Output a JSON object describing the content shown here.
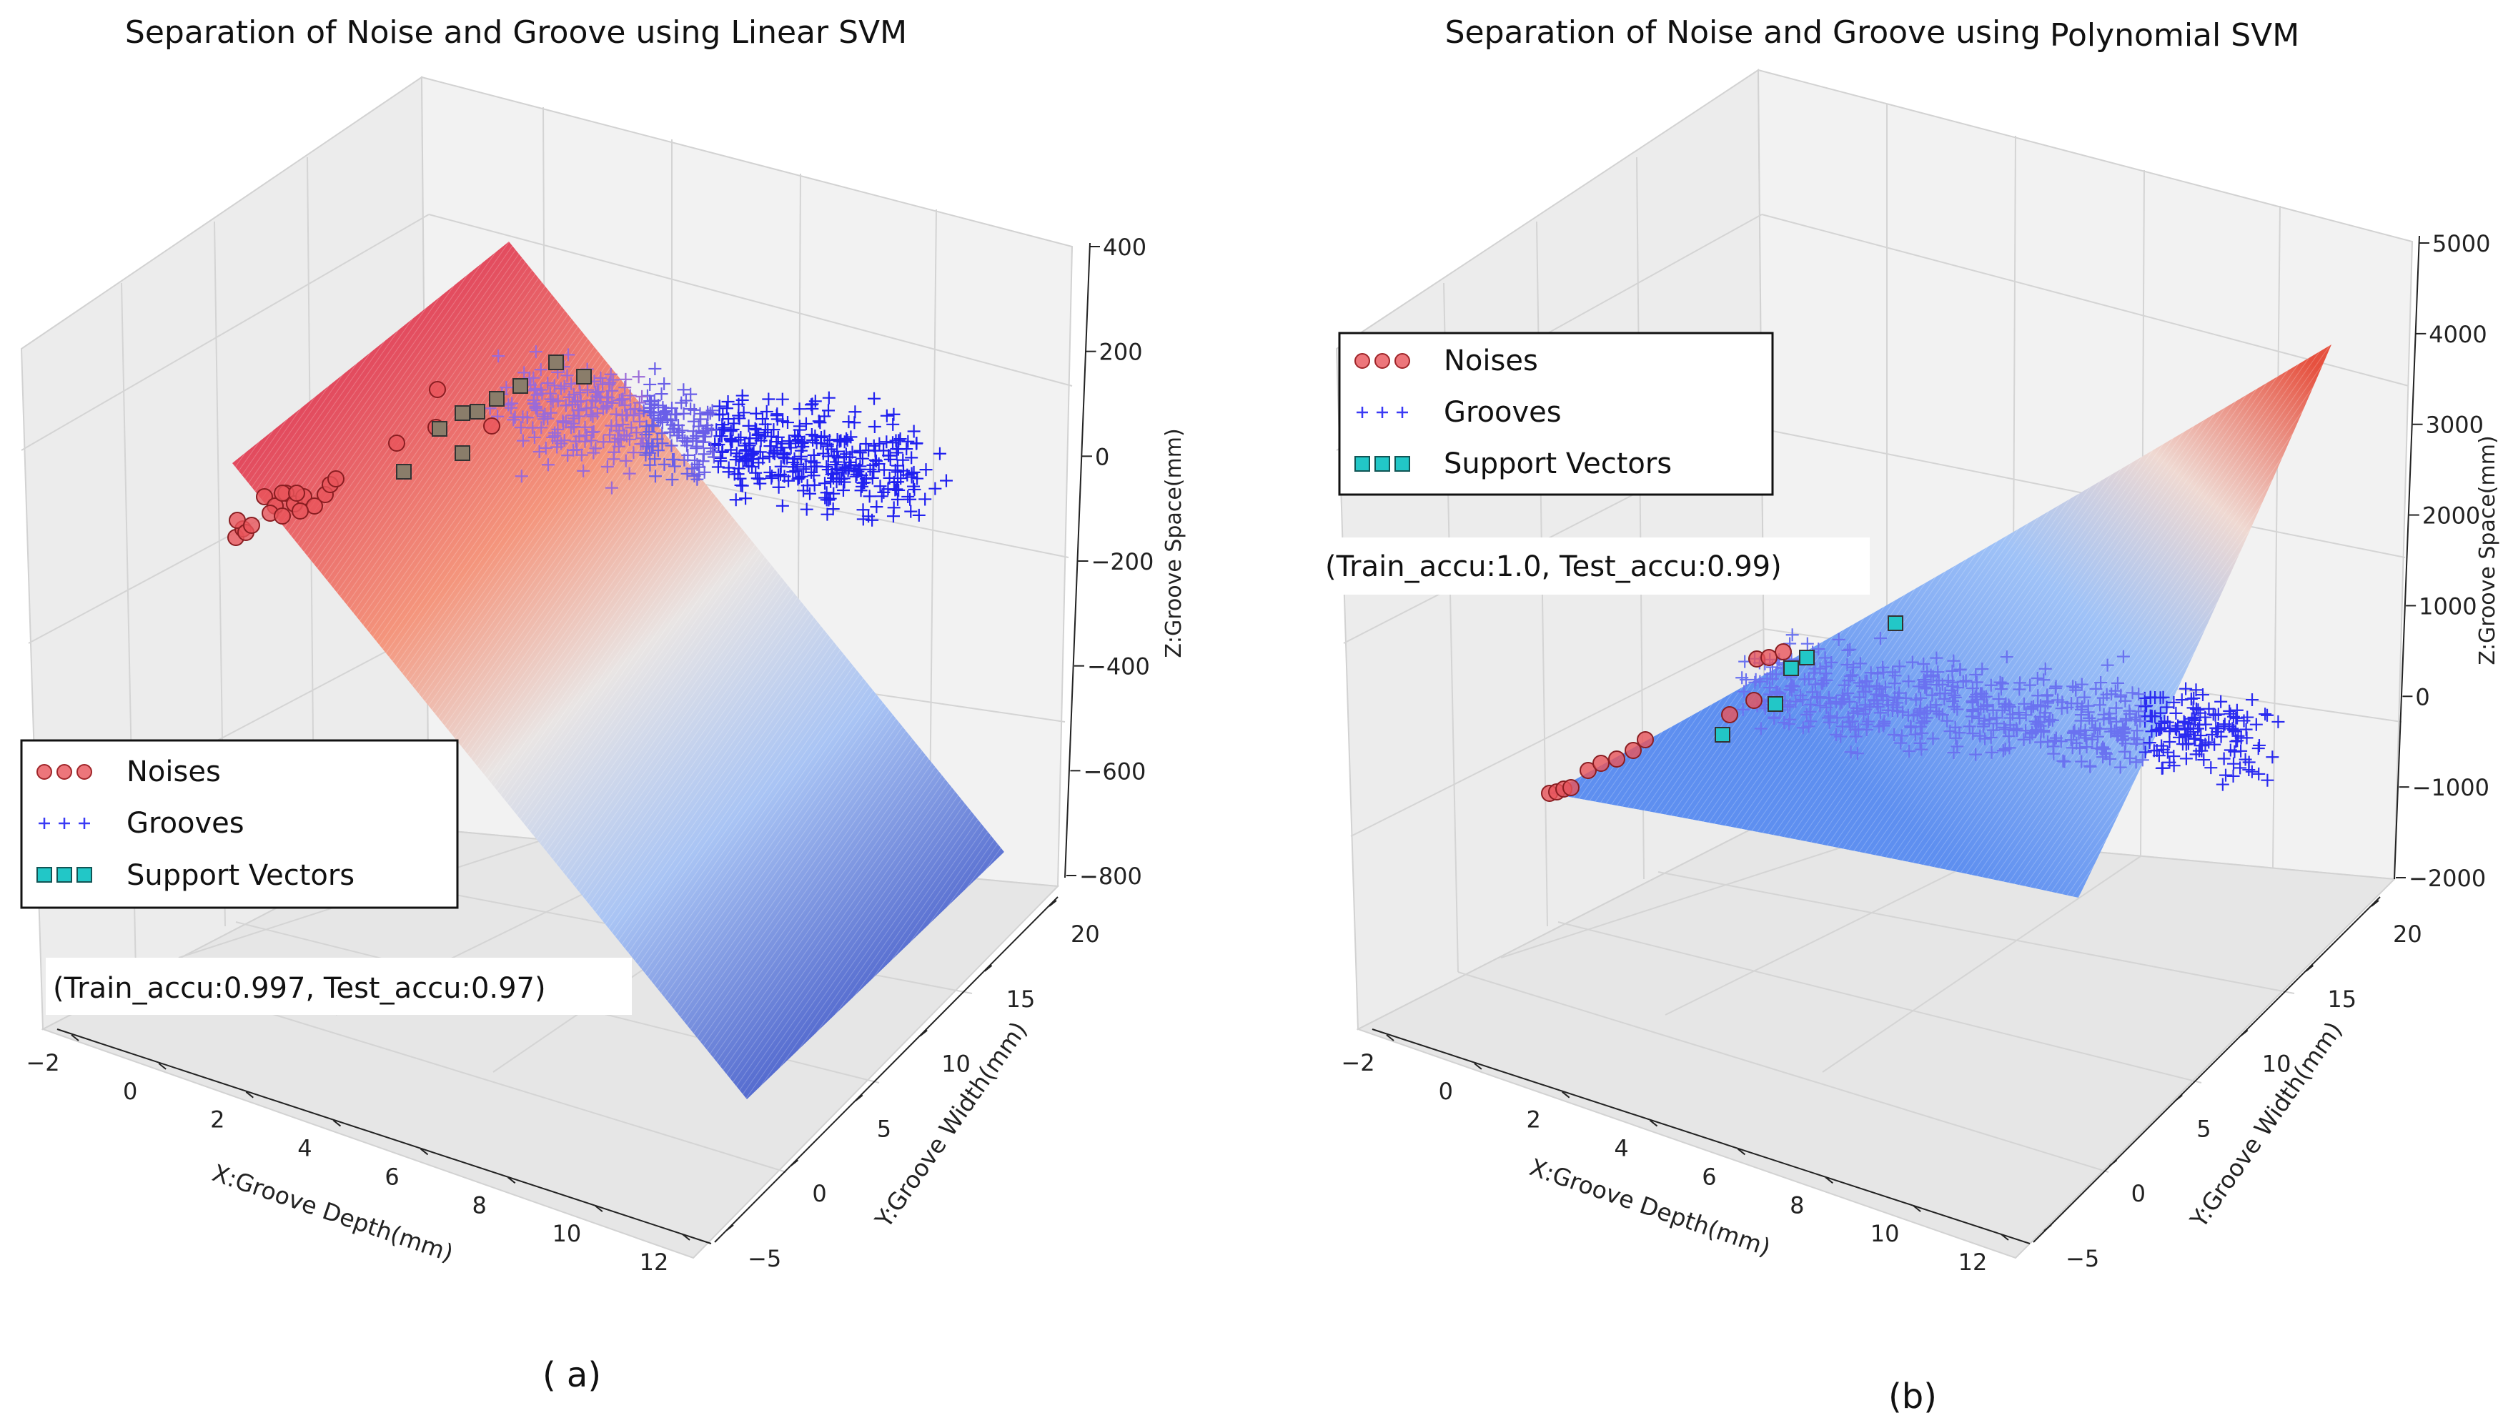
{
  "chart_data": [
    {
      "type": "scatter",
      "subtype": "3d-scatter-with-decision-surface",
      "title": "Separation of Noise and Groove using Linear SVM",
      "xlabel": "X:Groove Depth(mm)",
      "ylabel": "Y:Groove Width(mm)",
      "zlabel": "Z:Groove Space(mm)",
      "xlim": [
        -2,
        12
      ],
      "ylim": [
        -5,
        20
      ],
      "zlim": [
        -800,
        400
      ],
      "x_ticks": [
        "−2",
        "0",
        "2",
        "4",
        "6",
        "8",
        "10",
        "12"
      ],
      "y_ticks": [
        "−5",
        "0",
        "5",
        "10",
        "15",
        "20"
      ],
      "z_ticks": [
        "−800",
        "−600",
        "−400",
        "−200",
        "0",
        "200",
        "400"
      ],
      "legend": {
        "position": "center-left",
        "entries": [
          {
            "label": "Noises",
            "marker": "circle",
            "color": "#e8545a"
          },
          {
            "label": "Grooves",
            "marker": "plus",
            "color": "#3a3af5"
          },
          {
            "label": "Support Vectors",
            "marker": "square",
            "color": "#22c7c7"
          }
        ]
      },
      "annotation": "(Train_accu:0.997, Test_accu:0.97)",
      "caption": "( a)",
      "series": [
        {
          "name": "Noises",
          "x": [
            -1.8,
            -1.6,
            -1.4,
            -0.8,
            -0.5,
            0.0,
            0.5,
            1.8,
            3.0
          ],
          "y": [
            1.5,
            2.0,
            2.5,
            4.0,
            5.0,
            6.0,
            7.0,
            9.0,
            11.0
          ],
          "z": [
            -150,
            -140,
            -120,
            -60,
            -40,
            -20,
            0,
            30,
            60
          ]
        },
        {
          "name": "Grooves",
          "x_range": [
            4,
            12
          ],
          "y_range": [
            8,
            20
          ],
          "z_range": [
            -200,
            200
          ],
          "count": "approx. 600"
        },
        {
          "name": "Support Vectors",
          "x": [
            1.5,
            2.0,
            2.5,
            3.0,
            3.5,
            4.0
          ],
          "y": [
            8.0,
            9.0,
            10.0,
            11.0,
            12.0,
            13.0
          ],
          "z": [
            40,
            70,
            90,
            110,
            130,
            150
          ]
        }
      ]
    },
    {
      "type": "scatter",
      "subtype": "3d-scatter-with-decision-surface",
      "title_left": "Separation of Noise and Groove using",
      "title_right": "Polynomial SVM",
      "xlabel": "X:Groove Depth(mm)",
      "ylabel": "Y:Groove Width(mm)",
      "zlabel": "Z:Groove Space(mm)",
      "xlim": [
        -2,
        12
      ],
      "ylim": [
        -5,
        20
      ],
      "zlim": [
        -2000,
        5000
      ],
      "x_ticks": [
        "−2",
        "0",
        "2",
        "4",
        "6",
        "8",
        "10",
        "12"
      ],
      "y_ticks": [
        "−5",
        "0",
        "5",
        "10",
        "15",
        "20"
      ],
      "z_ticks": [
        "−2000",
        "−1000",
        "0",
        "1000",
        "2000",
        "3000",
        "4000",
        "5000"
      ],
      "legend": {
        "position": "top-left",
        "entries": [
          {
            "label": "Noises",
            "marker": "circle",
            "color": "#e8545a"
          },
          {
            "label": "Grooves",
            "marker": "plus",
            "color": "#3a3af5"
          },
          {
            "label": "Support Vectors",
            "marker": "square",
            "color": "#22c7c7"
          }
        ]
      },
      "annotation": "(Train_accu:1.0, Test_accu:0.99)",
      "caption": "(b)",
      "series": [
        {
          "name": "Noises",
          "x": [
            -1.8,
            -1.5,
            -1.0,
            -0.5,
            0.0,
            0.5,
            1.0,
            1.5,
            3.0
          ],
          "y": [
            1.0,
            1.5,
            2.5,
            3.5,
            4.5,
            5.5,
            6.5,
            7.5,
            10.0
          ],
          "z": [
            -1000,
            -980,
            -950,
            -900,
            -850,
            -800,
            -700,
            -600,
            -300
          ]
        },
        {
          "name": "Grooves",
          "x_range": [
            3,
            12
          ],
          "y_range": [
            6,
            20
          ],
          "z_range": [
            -1200,
            1000
          ],
          "count": "approx. 600"
        },
        {
          "name": "Support Vectors",
          "x": [
            3.0,
            3.5,
            4.0,
            4.5,
            5.0
          ],
          "y": [
            9.0,
            10.0,
            11.0,
            12.0,
            13.0
          ],
          "z": [
            -400,
            -200,
            0,
            200,
            400
          ]
        }
      ]
    }
  ]
}
